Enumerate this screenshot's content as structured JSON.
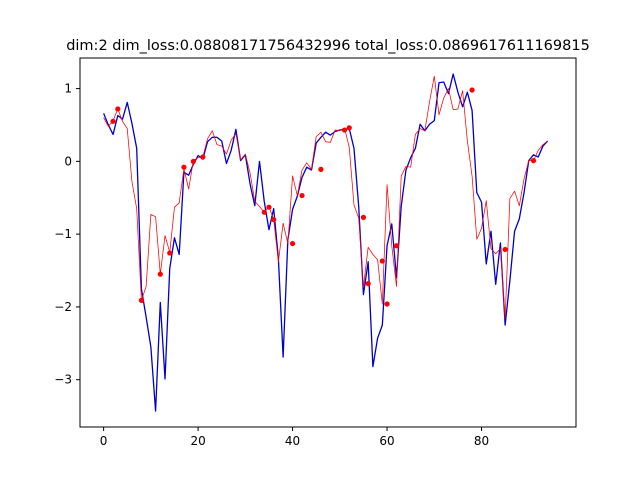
{
  "chart_data": {
    "type": "line",
    "title": "dim:2 dim_loss:0.08808171756432996 total_loss:0.0869617611169815",
    "xlabel": "",
    "ylabel": "",
    "xlim": [
      -5,
      100
    ],
    "ylim": [
      -3.65,
      1.42
    ],
    "x_ticks": [
      0,
      20,
      40,
      60,
      80
    ],
    "y_ticks": [
      1,
      0,
      -1,
      -2,
      -3
    ],
    "x_tick_labels": [
      "0",
      "20",
      "40",
      "60",
      "80"
    ],
    "y_tick_labels": [
      "1",
      "0",
      "−1",
      "−2",
      "−3"
    ],
    "grid": false,
    "legend": "none",
    "colors": {
      "blue": "#0000cc",
      "red": "#ff0000",
      "axis": "#000000"
    },
    "series": [
      {
        "color": "#0000cc",
        "style": "line",
        "y": [
          0.66,
          0.5,
          0.37,
          0.63,
          0.58,
          0.81,
          0.52,
          0.18,
          -1.75,
          -2.14,
          -2.55,
          -3.43,
          -1.94,
          -2.99,
          -1.47,
          -1.05,
          -1.28,
          -0.15,
          -0.19,
          -0.04,
          0.08,
          0.03,
          0.27,
          0.33,
          0.33,
          0.28,
          -0.03,
          0.15,
          0.44,
          0.01,
          0.09,
          -0.31,
          -0.61,
          0.0,
          -0.55,
          -0.94,
          -0.65,
          -1.34,
          -2.69,
          -1.08,
          -0.66,
          -0.48,
          -0.22,
          -0.08,
          -0.12,
          0.25,
          0.33,
          0.4,
          0.36,
          0.41,
          0.43,
          0.44,
          0.45,
          0.18,
          -0.62,
          -1.83,
          -1.38,
          -2.82,
          -2.43,
          -2.25,
          -1.16,
          -0.86,
          -1.6,
          -0.62,
          -0.12,
          0.05,
          0.18,
          0.51,
          0.42,
          0.51,
          0.56,
          1.08,
          1.09,
          0.93,
          1.2,
          0.95,
          0.75,
          0.95,
          0.7,
          -0.43,
          -0.56,
          -1.41,
          -0.96,
          -1.69,
          -1.12,
          -2.25,
          -1.64,
          -0.96,
          -0.79,
          -0.43,
          0.01,
          0.09,
          0.06,
          0.21,
          0.28
        ]
      },
      {
        "color": "#ff0000",
        "style": "line",
        "y": [
          0.6,
          0.48,
          0.56,
          0.72,
          0.55,
          0.45,
          -0.28,
          -0.65,
          -1.91,
          -1.72,
          -0.73,
          -0.76,
          -1.55,
          -1.02,
          -1.25,
          -0.63,
          -0.57,
          -0.1,
          -0.38,
          0.01,
          0.05,
          0.06,
          0.31,
          0.42,
          0.23,
          0.21,
          0.1,
          0.29,
          0.38,
          0.02,
          0.1,
          -0.16,
          -0.55,
          -0.62,
          -0.7,
          -0.62,
          -0.8,
          -1.38,
          -0.85,
          -1.13,
          -0.2,
          -0.47,
          -0.12,
          -0.02,
          -0.11,
          0.34,
          0.4,
          0.27,
          0.26,
          0.43,
          0.42,
          0.46,
          0.19,
          -0.6,
          -0.78,
          -1.73,
          -1.18,
          -1.28,
          -1.35,
          -1.96,
          -0.32,
          -1.16,
          -1.72,
          -0.2,
          -0.07,
          -0.08,
          0.37,
          0.45,
          0.42,
          0.82,
          1.17,
          0.64,
          0.87,
          1.0,
          0.71,
          0.72,
          0.97,
          0.28,
          -0.2,
          -1.07,
          -0.92,
          -0.54,
          -1.2,
          -1.27,
          -1.2,
          -2.16,
          -0.51,
          -0.41,
          -0.61,
          -0.24,
          0.01,
          0.01,
          0.15,
          0.23,
          0.28
        ]
      }
    ],
    "markers": {
      "color": "#ff0000",
      "points": [
        {
          "x": 2,
          "y": 0.55
        },
        {
          "x": 3,
          "y": 0.72
        },
        {
          "x": 8,
          "y": -1.91
        },
        {
          "x": 12,
          "y": -1.55
        },
        {
          "x": 14,
          "y": -1.26
        },
        {
          "x": 17,
          "y": -0.08
        },
        {
          "x": 19,
          "y": 0.0
        },
        {
          "x": 21,
          "y": 0.06
        },
        {
          "x": 34,
          "y": -0.7
        },
        {
          "x": 35,
          "y": -0.63
        },
        {
          "x": 36,
          "y": -0.8
        },
        {
          "x": 40,
          "y": -1.13
        },
        {
          "x": 42,
          "y": -0.47
        },
        {
          "x": 46,
          "y": -0.11
        },
        {
          "x": 51,
          "y": 0.43
        },
        {
          "x": 52,
          "y": 0.46
        },
        {
          "x": 55,
          "y": -0.77
        },
        {
          "x": 56,
          "y": -1.68
        },
        {
          "x": 59,
          "y": -1.37
        },
        {
          "x": 60,
          "y": -1.96
        },
        {
          "x": 62,
          "y": -1.16
        },
        {
          "x": 78,
          "y": 0.98
        },
        {
          "x": 85,
          "y": -1.21
        },
        {
          "x": 91,
          "y": 0.01
        }
      ]
    }
  }
}
